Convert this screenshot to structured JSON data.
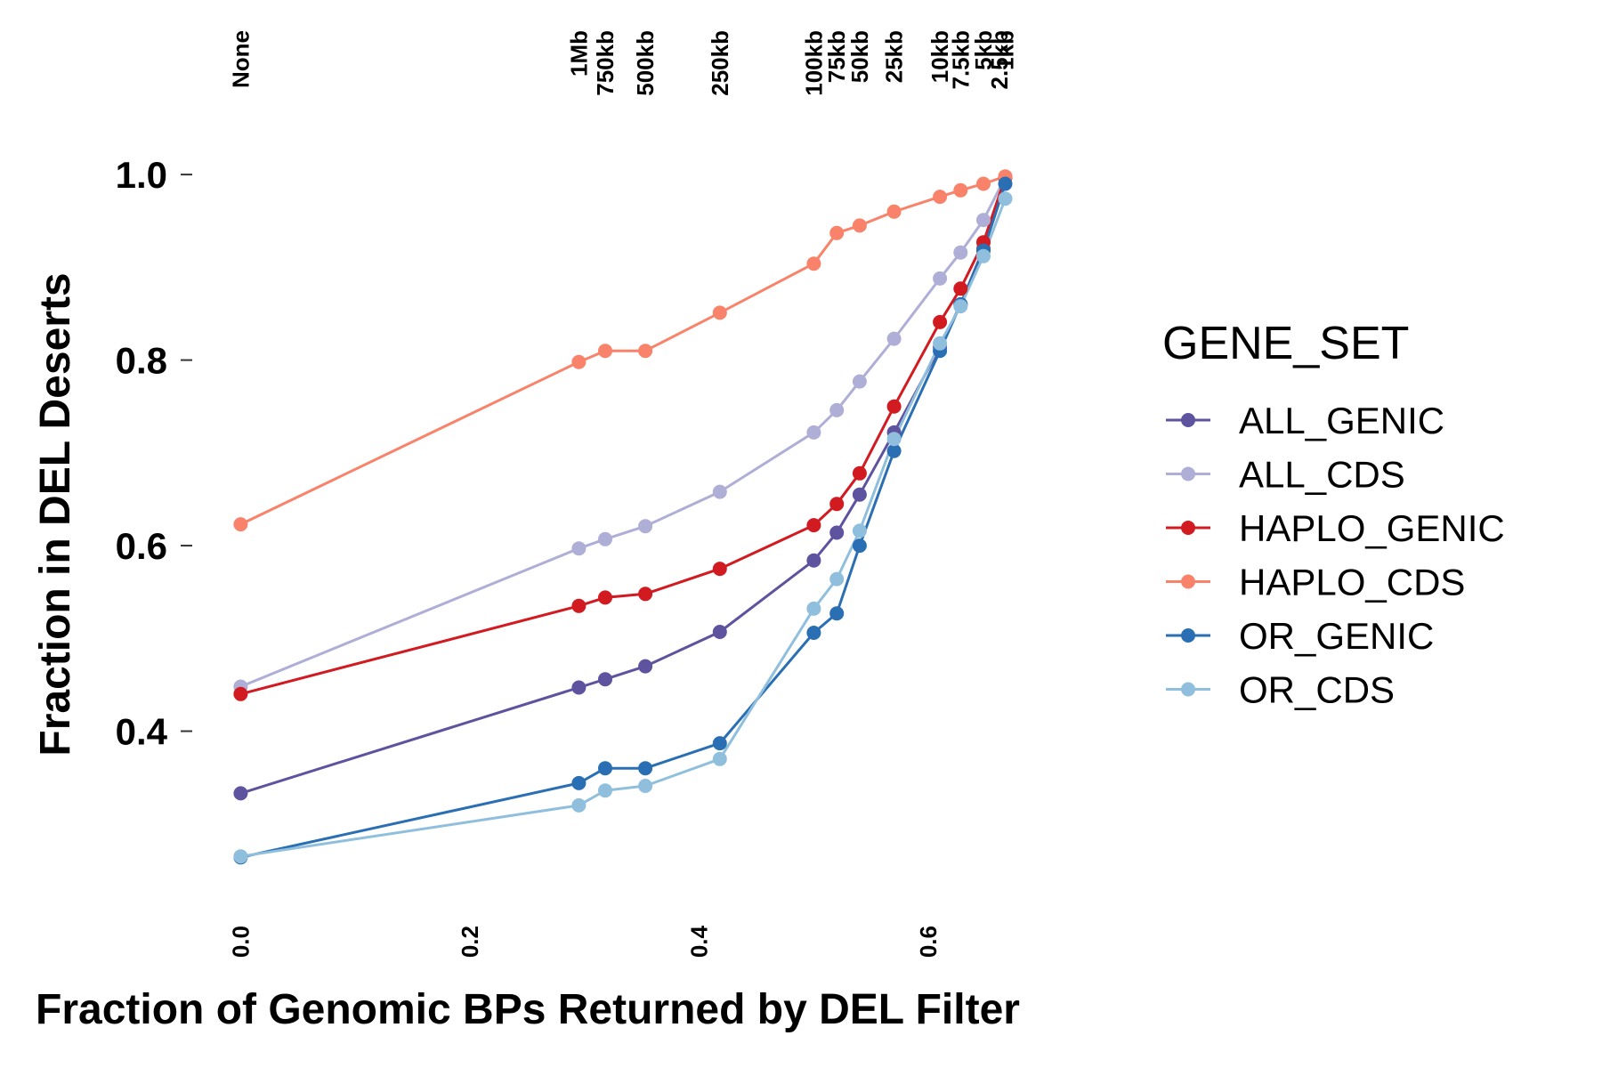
{
  "chart_data": {
    "type": "line",
    "xlabel": "Fraction of Genomic BPs Returned by DEL Filter",
    "ylabel": "Fraction in DEL Deserts",
    "xlim": [
      -0.005,
      0.7
    ],
    "ylim": [
      0.2,
      1.05
    ],
    "x_ticks": [
      0.0,
      0.2,
      0.4,
      0.6
    ],
    "x_tick_labels": [
      "0.0",
      "0.2",
      "0.4",
      "0.6"
    ],
    "y_ticks": [
      0.4,
      0.6,
      0.8,
      1.0
    ],
    "y_tick_labels": [
      "0.4",
      "0.6",
      "0.8",
      "1.0"
    ],
    "grid": false,
    "legend_title": "GENE_SET",
    "legend_position": "right",
    "x": [
      0.0,
      0.295,
      0.318,
      0.353,
      0.418,
      0.5,
      0.52,
      0.54,
      0.57,
      0.61,
      0.628,
      0.648,
      0.667
    ],
    "top_labels": [
      "None",
      "1Mb",
      "750kb",
      "500kb",
      "250kb",
      "100kb",
      "75kb",
      "50kb",
      "25kb",
      "10kb",
      "7.5kb",
      "5kb",
      "2.5kb",
      "1kb"
    ],
    "top_label_x": [
      0.0,
      0.295,
      0.318,
      0.353,
      0.418,
      0.5,
      0.52,
      0.54,
      0.57,
      0.61,
      0.628,
      0.648,
      0.662,
      0.667
    ],
    "series": [
      {
        "name": "ALL_GENIC",
        "color": "#5e539f",
        "values": [
          0.333,
          0.447,
          0.456,
          0.47,
          0.507,
          0.584,
          0.614,
          0.655,
          0.722,
          0.814,
          0.86,
          0.92,
          0.997
        ]
      },
      {
        "name": "ALL_CDS",
        "color": "#aeaed6",
        "values": [
          0.448,
          0.597,
          0.607,
          0.621,
          0.658,
          0.722,
          0.746,
          0.777,
          0.823,
          0.888,
          0.916,
          0.951,
          0.997
        ]
      },
      {
        "name": "HAPLO_GENIC",
        "color": "#d21b21",
        "values": [
          0.44,
          0.535,
          0.544,
          0.548,
          0.575,
          0.622,
          0.645,
          0.678,
          0.75,
          0.841,
          0.877,
          0.927,
          0.997
        ]
      },
      {
        "name": "HAPLO_CDS",
        "color": "#f8836a",
        "values": [
          0.623,
          0.798,
          0.81,
          0.81,
          0.851,
          0.904,
          0.937,
          0.945,
          0.96,
          0.976,
          0.983,
          0.99,
          0.998
        ]
      },
      {
        "name": "OR_GENIC",
        "color": "#2a6fb3",
        "values": [
          0.264,
          0.344,
          0.36,
          0.36,
          0.387,
          0.506,
          0.527,
          0.6,
          0.702,
          0.81,
          0.86,
          0.918,
          0.99
        ]
      },
      {
        "name": "OR_CDS",
        "color": "#8fbfdc",
        "values": [
          0.265,
          0.32,
          0.336,
          0.341,
          0.37,
          0.532,
          0.564,
          0.616,
          0.715,
          0.818,
          0.858,
          0.912,
          0.974
        ]
      }
    ]
  }
}
